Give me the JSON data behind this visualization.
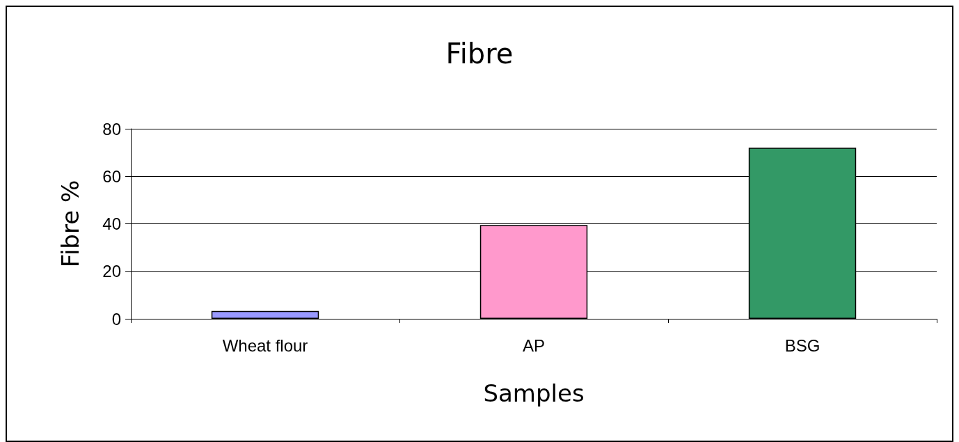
{
  "chart_data": {
    "type": "bar",
    "title": "Fibre",
    "xlabel": "Samples",
    "ylabel": "Fibre %",
    "categories": [
      "Wheat flour",
      "AP",
      "BSG"
    ],
    "values": [
      3.3,
      39.5,
      72
    ],
    "colors": [
      "#9999ff",
      "#ff99cc",
      "#339966"
    ],
    "ylim": [
      0,
      80
    ],
    "yticks": [
      0,
      20,
      40,
      60,
      80
    ],
    "grid": "y"
  }
}
